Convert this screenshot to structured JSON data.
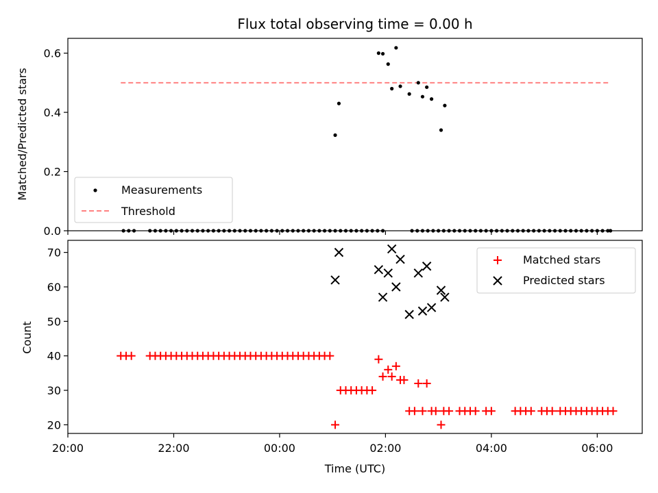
{
  "figure": {
    "title": "Flux total observing time = 0.00 h"
  },
  "chart_data": [
    {
      "type": "scatter",
      "ylabel": "Matched/Predicted stars",
      "xlim": [
        -4.0,
        6.85
      ],
      "ylim": [
        0.0,
        0.65
      ],
      "yticks": [
        "0.0",
        "0.2",
        "0.4",
        "0.6"
      ],
      "ytick_values": [
        0.0,
        0.2,
        0.4,
        0.6
      ],
      "threshold": {
        "name": "Threshold",
        "value": 0.5,
        "x_range": [
          -3.0,
          6.25
        ],
        "color": "#ff8080"
      },
      "series": [
        {
          "name": "Measurements",
          "color": "#000000",
          "points": [
            [
              -2.95,
              0
            ],
            [
              -2.85,
              0
            ],
            [
              -2.75,
              0
            ],
            [
              -2.45,
              0
            ],
            [
              -2.35,
              0
            ],
            [
              -2.25,
              0
            ],
            [
              -2.15,
              0
            ],
            [
              -2.05,
              0
            ],
            [
              -1.95,
              0
            ],
            [
              -1.85,
              0
            ],
            [
              -1.75,
              0
            ],
            [
              -1.65,
              0
            ],
            [
              -1.55,
              0
            ],
            [
              -1.45,
              0
            ],
            [
              -1.35,
              0
            ],
            [
              -1.25,
              0
            ],
            [
              -1.15,
              0
            ],
            [
              -1.05,
              0
            ],
            [
              -0.95,
              0
            ],
            [
              -0.85,
              0
            ],
            [
              -0.75,
              0
            ],
            [
              -0.65,
              0
            ],
            [
              -0.55,
              0
            ],
            [
              -0.45,
              0
            ],
            [
              -0.35,
              0
            ],
            [
              -0.25,
              0
            ],
            [
              -0.15,
              0
            ],
            [
              -0.05,
              0
            ],
            [
              0.05,
              0
            ],
            [
              0.15,
              0
            ],
            [
              0.25,
              0
            ],
            [
              0.35,
              0
            ],
            [
              0.45,
              0
            ],
            [
              0.55,
              0
            ],
            [
              0.65,
              0
            ],
            [
              0.75,
              0
            ],
            [
              0.85,
              0
            ],
            [
              0.95,
              0
            ],
            [
              1.05,
              0
            ],
            [
              1.15,
              0
            ],
            [
              1.25,
              0
            ],
            [
              1.35,
              0
            ],
            [
              1.45,
              0
            ],
            [
              1.55,
              0
            ],
            [
              1.65,
              0
            ],
            [
              1.75,
              0
            ],
            [
              1.85,
              0
            ],
            [
              1.95,
              0
            ],
            [
              2.5,
              0
            ],
            [
              2.6,
              0
            ],
            [
              2.7,
              0
            ],
            [
              2.8,
              0
            ],
            [
              2.9,
              0
            ],
            [
              3.0,
              0
            ],
            [
              3.1,
              0
            ],
            [
              3.2,
              0
            ],
            [
              3.3,
              0
            ],
            [
              3.4,
              0
            ],
            [
              3.5,
              0
            ],
            [
              3.6,
              0
            ],
            [
              3.7,
              0
            ],
            [
              3.8,
              0
            ],
            [
              3.9,
              0
            ],
            [
              4.0,
              0
            ],
            [
              4.1,
              0
            ],
            [
              4.2,
              0
            ],
            [
              4.3,
              0
            ],
            [
              4.4,
              0
            ],
            [
              4.5,
              0
            ],
            [
              4.6,
              0
            ],
            [
              4.7,
              0
            ],
            [
              4.8,
              0
            ],
            [
              4.9,
              0
            ],
            [
              5.0,
              0
            ],
            [
              5.1,
              0
            ],
            [
              5.2,
              0
            ],
            [
              5.3,
              0
            ],
            [
              5.4,
              0
            ],
            [
              5.5,
              0
            ],
            [
              5.6,
              0
            ],
            [
              5.7,
              0
            ],
            [
              5.8,
              0
            ],
            [
              5.9,
              0
            ],
            [
              6.0,
              0
            ],
            [
              6.1,
              0
            ],
            [
              6.2,
              0
            ],
            [
              6.25,
              0
            ],
            [
              1.05,
              0.323
            ],
            [
              1.12,
              0.43
            ],
            [
              1.87,
              0.6
            ],
            [
              1.95,
              0.598
            ],
            [
              2.05,
              0.563
            ],
            [
              2.12,
              0.48
            ],
            [
              2.2,
              0.618
            ],
            [
              2.28,
              0.488
            ],
            [
              2.45,
              0.462
            ],
            [
              2.62,
              0.5
            ],
            [
              2.7,
              0.453
            ],
            [
              2.78,
              0.485
            ],
            [
              2.87,
              0.445
            ],
            [
              3.05,
              0.34
            ],
            [
              3.12,
              0.423
            ]
          ]
        }
      ]
    },
    {
      "type": "scatter",
      "xlabel": "Time (UTC)",
      "ylabel": "Count",
      "xlim": [
        -4.0,
        6.85
      ],
      "ylim": [
        17.5,
        73.5
      ],
      "yticks": [
        "20",
        "30",
        "40",
        "50",
        "60",
        "70"
      ],
      "ytick_values": [
        20,
        30,
        40,
        50,
        60,
        70
      ],
      "xticks": [
        "20:00",
        "22:00",
        "00:00",
        "02:00",
        "04:00",
        "06:00"
      ],
      "xtick_values": [
        -4,
        -2,
        0,
        2,
        4,
        6
      ],
      "series": [
        {
          "name": "Matched stars",
          "marker": "plus",
          "color": "#ff0000",
          "points": [
            [
              -3.0,
              40
            ],
            [
              -2.9,
              40
            ],
            [
              -2.8,
              40
            ],
            [
              -2.45,
              40
            ],
            [
              -2.35,
              40
            ],
            [
              -2.25,
              40
            ],
            [
              -2.15,
              40
            ],
            [
              -2.05,
              40
            ],
            [
              -1.95,
              40
            ],
            [
              -1.85,
              40
            ],
            [
              -1.75,
              40
            ],
            [
              -1.65,
              40
            ],
            [
              -1.55,
              40
            ],
            [
              -1.45,
              40
            ],
            [
              -1.35,
              40
            ],
            [
              -1.25,
              40
            ],
            [
              -1.15,
              40
            ],
            [
              -1.05,
              40
            ],
            [
              -0.95,
              40
            ],
            [
              -0.85,
              40
            ],
            [
              -0.75,
              40
            ],
            [
              -0.65,
              40
            ],
            [
              -0.55,
              40
            ],
            [
              -0.45,
              40
            ],
            [
              -0.35,
              40
            ],
            [
              -0.25,
              40
            ],
            [
              -0.15,
              40
            ],
            [
              -0.05,
              40
            ],
            [
              0.05,
              40
            ],
            [
              0.15,
              40
            ],
            [
              0.25,
              40
            ],
            [
              0.35,
              40
            ],
            [
              0.45,
              40
            ],
            [
              0.55,
              40
            ],
            [
              0.65,
              40
            ],
            [
              0.75,
              40
            ],
            [
              0.85,
              40
            ],
            [
              0.95,
              40
            ],
            [
              1.05,
              20
            ],
            [
              1.15,
              30
            ],
            [
              1.25,
              30
            ],
            [
              1.35,
              30
            ],
            [
              1.45,
              30
            ],
            [
              1.55,
              30
            ],
            [
              1.65,
              30
            ],
            [
              1.75,
              30
            ],
            [
              1.87,
              39
            ],
            [
              1.95,
              34
            ],
            [
              2.05,
              36
            ],
            [
              2.12,
              34
            ],
            [
              2.2,
              37
            ],
            [
              2.28,
              33
            ],
            [
              2.35,
              33
            ],
            [
              2.45,
              24
            ],
            [
              2.55,
              24
            ],
            [
              2.62,
              32
            ],
            [
              2.7,
              24
            ],
            [
              2.78,
              32
            ],
            [
              2.87,
              24
            ],
            [
              3.05,
              20
            ],
            [
              2.95,
              24
            ],
            [
              3.1,
              24
            ],
            [
              3.2,
              24
            ],
            [
              3.4,
              24
            ],
            [
              3.5,
              24
            ],
            [
              3.6,
              24
            ],
            [
              3.7,
              24
            ],
            [
              3.9,
              24
            ],
            [
              4.0,
              24
            ],
            [
              4.45,
              24
            ],
            [
              4.55,
              24
            ],
            [
              4.65,
              24
            ],
            [
              4.75,
              24
            ],
            [
              4.95,
              24
            ],
            [
              5.05,
              24
            ],
            [
              5.15,
              24
            ],
            [
              5.3,
              24
            ],
            [
              5.4,
              24
            ],
            [
              5.5,
              24
            ],
            [
              5.6,
              24
            ],
            [
              5.7,
              24
            ],
            [
              5.8,
              24
            ],
            [
              5.9,
              24
            ],
            [
              6.0,
              24
            ],
            [
              6.1,
              24
            ],
            [
              6.2,
              24
            ],
            [
              6.3,
              24
            ]
          ]
        },
        {
          "name": "Predicted stars",
          "marker": "x",
          "color": "#000000",
          "points": [
            [
              1.05,
              62
            ],
            [
              1.12,
              70
            ],
            [
              1.87,
              65
            ],
            [
              1.95,
              57
            ],
            [
              2.05,
              64
            ],
            [
              2.12,
              71
            ],
            [
              2.2,
              60
            ],
            [
              2.28,
              68
            ],
            [
              2.45,
              52
            ],
            [
              2.62,
              64
            ],
            [
              2.7,
              53
            ],
            [
              2.78,
              66
            ],
            [
              2.87,
              54
            ],
            [
              3.05,
              59
            ],
            [
              3.12,
              57
            ]
          ]
        }
      ]
    }
  ]
}
